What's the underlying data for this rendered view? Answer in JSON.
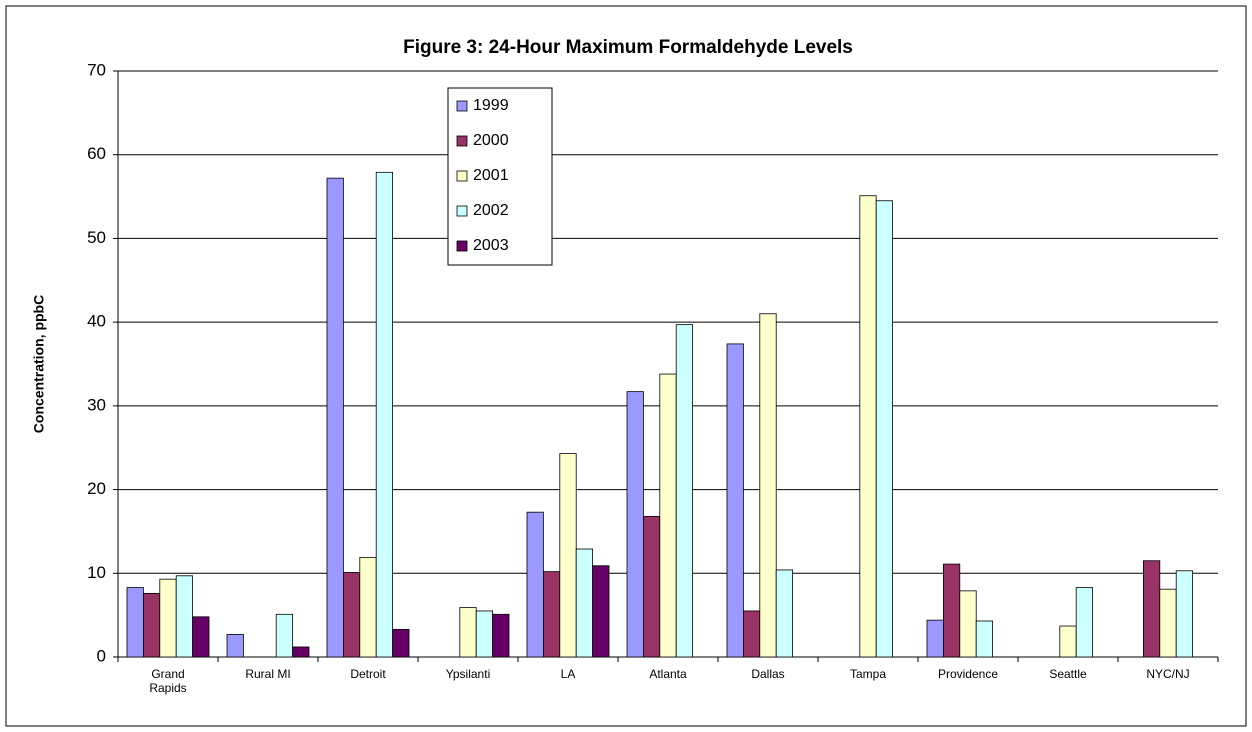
{
  "chart_data": {
    "type": "bar",
    "title": "Figure 3: 24-Hour Maximum Formaldehyde Levels",
    "y_label": "Concentration, ppbC",
    "categories": [
      "Grand Rapids",
      "Rural MI",
      "Detroit",
      "Ypsilanti",
      "LA",
      "Atlanta",
      "Dallas",
      "Tampa",
      "Providence",
      "Seattle",
      "NYC/NJ"
    ],
    "series": [
      {
        "name": "1999",
        "color": "#9999ff",
        "values": [
          8.3,
          2.7,
          57.2,
          null,
          17.3,
          31.7,
          37.4,
          null,
          4.4,
          null,
          null
        ]
      },
      {
        "name": "2000",
        "color": "#993366",
        "values": [
          7.6,
          null,
          10.1,
          null,
          10.2,
          16.8,
          5.5,
          null,
          11.1,
          null,
          11.5
        ]
      },
      {
        "name": "2001",
        "color": "#ffffcc",
        "values": [
          9.3,
          null,
          11.9,
          5.9,
          24.3,
          33.8,
          41.0,
          55.1,
          7.9,
          3.7,
          8.1
        ]
      },
      {
        "name": "2002",
        "color": "#ccffff",
        "values": [
          9.7,
          5.1,
          57.9,
          5.5,
          12.9,
          39.7,
          10.4,
          54.5,
          4.3,
          8.3,
          10.3
        ]
      },
      {
        "name": "2003",
        "color": "#660066",
        "values": [
          4.8,
          1.2,
          3.3,
          5.1,
          10.9,
          null,
          null,
          null,
          null,
          null,
          null
        ]
      }
    ],
    "ylim": [
      0,
      70
    ],
    "yticks": [
      0,
      10,
      20,
      30,
      40,
      50,
      60,
      70
    ],
    "grid": true,
    "legend": "top-center"
  }
}
